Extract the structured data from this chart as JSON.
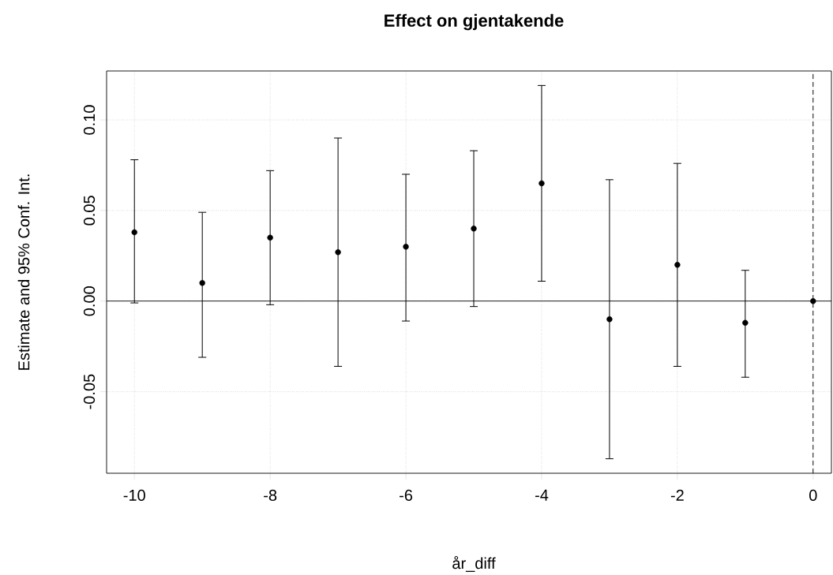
{
  "chart_data": {
    "type": "scatter",
    "title": "Effect on gjentakende",
    "xlabel": "år_diff",
    "ylabel": "Estimate and 95% Conf. Int.",
    "x": [
      -10,
      -9,
      -8,
      -7,
      -6,
      -5,
      -4,
      -3,
      -2,
      -1,
      0
    ],
    "series": [
      {
        "color": "#000000",
        "values": [
          0.038,
          0.01,
          0.035,
          0.027,
          0.03,
          0.04,
          0.065,
          -0.01,
          0.02,
          -0.012,
          0.0
        ],
        "errors": [
          [
            -0.001,
            0.078
          ],
          [
            -0.031,
            0.049
          ],
          [
            -0.002,
            0.072
          ],
          [
            -0.036,
            0.09
          ],
          [
            -0.011,
            0.07
          ],
          [
            -0.003,
            0.083
          ],
          [
            0.011,
            0.119
          ],
          [
            -0.087,
            0.067
          ],
          [
            -0.036,
            0.076
          ],
          [
            -0.042,
            0.017
          ],
          null
        ]
      }
    ],
    "xlim": [
      -10.41,
      0.27
    ],
    "ylim": [
      -0.095,
      0.127
    ],
    "xticks": [
      -10,
      -8,
      -6,
      -4,
      -2,
      0
    ],
    "yticks": [
      {
        "value": -0.05,
        "label": "-0.05"
      },
      {
        "value": 0,
        "label": "0.00"
      },
      {
        "value": 0.05,
        "label": "0.05"
      },
      {
        "value": 0.1,
        "label": "0.10"
      }
    ],
    "grid": true,
    "marker": "circle",
    "ref_lines": [
      {
        "axis": "y",
        "value": 0,
        "line_style": "solid"
      },
      {
        "axis": "x",
        "value": 0,
        "line_style": "dashed"
      }
    ]
  }
}
